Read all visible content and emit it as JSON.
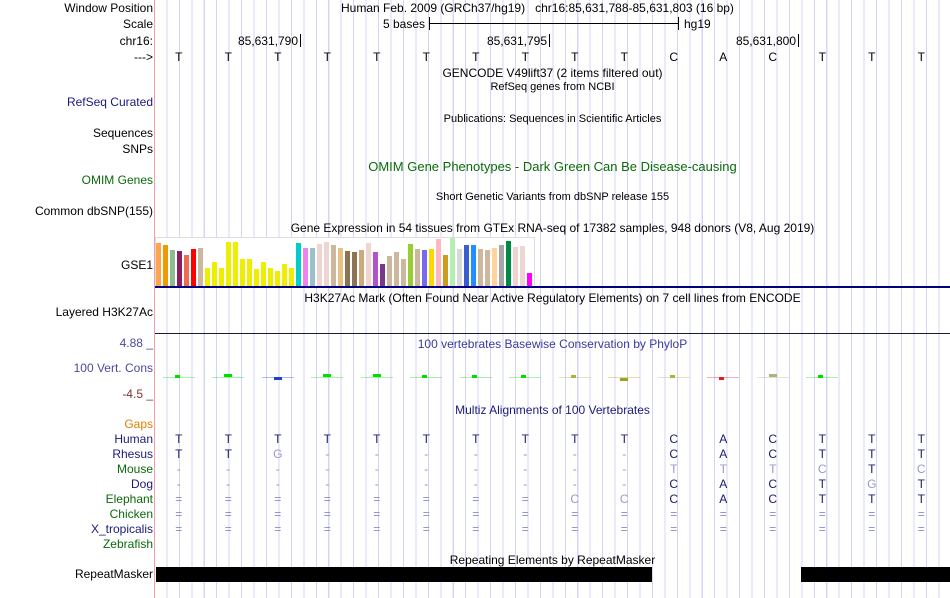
{
  "header": {
    "window_position_label": "Window Position",
    "title": "Human Feb. 2009 (GRCh37/hg19)   chr16:85,631,788-85,631,803 (16 bp)",
    "scale_label": "Scale",
    "scale_text": "5 bases",
    "assembly": "hg19",
    "chrom_label": "chr16:",
    "strand_label": "--->",
    "ticks": [
      "85,631,790",
      "85,631,795",
      "85,631,800"
    ]
  },
  "bases": [
    "T",
    "T",
    "T",
    "T",
    "T",
    "T",
    "T",
    "T",
    "T",
    "T",
    "C",
    "A",
    "C",
    "T",
    "T",
    "T"
  ],
  "tracks": {
    "gencode_title": "GENCODE V49lift37 (2 items filtered out)",
    "refseq_title": "RefSeq genes from NCBI",
    "refseq_label": "RefSeq Curated",
    "pubs_title": "Publications: Sequences in Scientific Articles",
    "sequences_label": "Sequences",
    "snps_label": "SNPs",
    "omim_title": "OMIM Gene Phenotypes - Dark Green Can Be Disease-causing",
    "omim_label": "OMIM Genes",
    "dbsnp_title": "Short Genetic Variants from dbSNP release 155",
    "dbsnp_label": "Common dbSNP(155)",
    "gtex_title": "Gene Expression in 54 tissues from GTEx RNA-seq of 17382 samples, 948 donors (V8, Aug 2019)",
    "gtex_label": "GSE1",
    "h3k27_title": "H3K27Ac Mark (Often Found Near Active Regulatory Elements) on 7 cell lines from ENCODE",
    "h3k27_label": "Layered H3K27Ac",
    "phylop_title": "100 vertebrates Basewise Conservation by PhyloP",
    "phylop_label": "100 Vert. Cons",
    "phylop_max": "4.88 _",
    "phylop_min": "-4.5 _",
    "multiz_title": "Multiz Alignments of 100 Vertebrates",
    "gaps_label": "Gaps",
    "rmsk_title": "Repeating Elements by RepeatMasker",
    "rmsk_label": "RepeatMasker"
  },
  "gtex": {
    "values": [
      44,
      42,
      37,
      36,
      32,
      38,
      39,
      19,
      25,
      19,
      45,
      45,
      28,
      28,
      18,
      25,
      19,
      16,
      23,
      19,
      44,
      39,
      39,
      43,
      45,
      42,
      39,
      36,
      35,
      37,
      44,
      35,
      23,
      31,
      35,
      28,
      43,
      38,
      37,
      38,
      48,
      32,
      49,
      38,
      42,
      42,
      38,
      37,
      39,
      42,
      46,
      40,
      41,
      14
    ],
    "colors": [
      "#ffa54f",
      "#ee9a00",
      "#8fbc8f",
      "#8b1c62",
      "#ee6a50",
      "#ff0000",
      "#cdb79e",
      "#eeee00",
      "#eeee00",
      "#eeee00",
      "#eeee00",
      "#eeee00",
      "#eeee00",
      "#eeee00",
      "#eeee00",
      "#eeee00",
      "#eeee00",
      "#eeee00",
      "#eeee00",
      "#eeee00",
      "#00cdcd",
      "#ee82ee",
      "#9ac0cd",
      "#eed5d2",
      "#eed5d2",
      "#cdb79e",
      "#ebc083",
      "#8b7355",
      "#8b7355",
      "#cdaa7d",
      "#eed5d2",
      "#b452cd",
      "#7a378b",
      "#cdb79e",
      "#cdb79e",
      "#cdb79e",
      "#9acd32",
      "#cdb79e",
      "#7b68ee",
      "#ffd700",
      "#ffb6c1",
      "#cd9b1d",
      "#b4eeb4",
      "#d9d9d9",
      "#3a5fcd",
      "#1e90ff",
      "#cdb79e",
      "#cdb79e",
      "#ffd39b",
      "#a6a6a6",
      "#008b45",
      "#eed5d2",
      "#eed5d2",
      "#ff00ff"
    ]
  },
  "phylop": {
    "values": [
      0.3,
      0.6,
      -0.4,
      0.6,
      0.6,
      0.3,
      0.3,
      0.3,
      0.3,
      -0.5,
      0.2,
      -0.2,
      0.8,
      0.3,
      0,
      0
    ],
    "colors": [
      "#00dd00",
      "#00dd00",
      "#2040d0",
      "#00dd00",
      "#00dd00",
      "#00dd00",
      "#00dd00",
      "#00dd00",
      "#b0b040",
      "#a0a020",
      "#b0b040",
      "#e02020",
      "#b0b080",
      "#00dd00",
      "#ffffff",
      "#ffffff"
    ]
  },
  "multiz": [
    {
      "species": "Human",
      "color": "#1a1a7a",
      "seq": [
        "T",
        "T",
        "T",
        "T",
        "T",
        "T",
        "T",
        "T",
        "T",
        "T",
        "C",
        "A",
        "C",
        "T",
        "T",
        "T"
      ]
    },
    {
      "species": "Rhesus",
      "color": "#1a1a7a",
      "seq": [
        "T",
        "T",
        "G",
        "-",
        "-",
        "-",
        "-",
        "-",
        "-",
        "-",
        "C",
        "A",
        "C",
        "T",
        "T",
        "T"
      ]
    },
    {
      "species": "Mouse",
      "color": "#0a6a0a",
      "seq": [
        "-",
        "-",
        "-",
        "-",
        "-",
        "-",
        "-",
        "-",
        "-",
        "-",
        "T",
        "T",
        "T",
        "C",
        "T",
        "C"
      ]
    },
    {
      "species": "Dog",
      "color": "#1a1a7a",
      "seq": [
        "-",
        "-",
        "-",
        "-",
        "-",
        "-",
        "-",
        "-",
        "-",
        "-",
        "C",
        "A",
        "C",
        "T",
        "G",
        "T"
      ]
    },
    {
      "species": "Elephant",
      "color": "#0a6a0a",
      "seq": [
        "=",
        "=",
        "=",
        "=",
        "=",
        "=",
        "=",
        "=",
        "C",
        "C",
        "C",
        "A",
        "C",
        "T",
        "T",
        "T"
      ]
    },
    {
      "species": "Chicken",
      "color": "#0a6a0a",
      "seq": [
        "=",
        "=",
        "=",
        "=",
        "=",
        "=",
        "=",
        "=",
        "=",
        "=",
        "=",
        "=",
        "=",
        "=",
        "=",
        "="
      ]
    },
    {
      "species": "X_tropicalis",
      "color": "#1a1a7a",
      "seq": [
        "=",
        "=",
        "=",
        "=",
        "=",
        "=",
        "=",
        "=",
        "=",
        "=",
        "=",
        "=",
        "=",
        "=",
        "=",
        "="
      ]
    },
    {
      "species": "Zebrafish",
      "color": "#0a6a0a",
      "seq": [
        "",
        "",
        "",
        "",
        "",
        "",
        "",
        "",
        "",
        "",
        "",
        "",
        "",
        "",
        "",
        ""
      ]
    }
  ]
}
